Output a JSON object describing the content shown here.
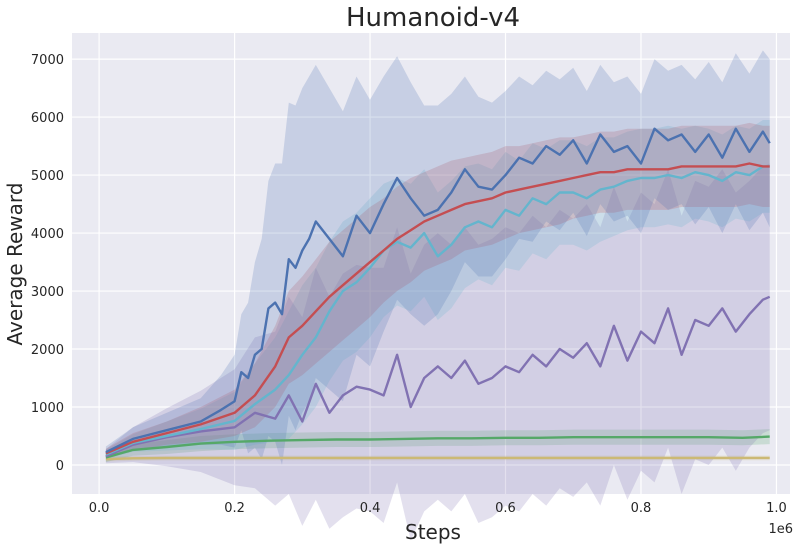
{
  "chart_data": {
    "type": "line",
    "title": "Humanoid-v4",
    "xlabel": "Steps",
    "ylabel": "Average Reward",
    "x_offset_label": "1e6",
    "xlim": [
      -0.04,
      1.02
    ],
    "ylim": [
      -500,
      7450
    ],
    "x_ticks": [
      0.0,
      0.2,
      0.4,
      0.6,
      0.8,
      1.0
    ],
    "x_tick_labels": [
      "0.0",
      "0.2",
      "0.4",
      "0.6",
      "0.8",
      "1.0"
    ],
    "y_ticks": [
      0,
      1000,
      2000,
      3000,
      4000,
      5000,
      6000,
      7000
    ],
    "y_tick_labels": [
      "0",
      "1000",
      "2000",
      "3000",
      "4000",
      "5000",
      "6000",
      "7000"
    ],
    "grid": true,
    "background": "#eaeaf2",
    "legend": "none",
    "series": [
      {
        "color": "#ccb974",
        "x": [
          0.01,
          0.05,
          0.1,
          0.2,
          0.3,
          0.4,
          0.5,
          0.6,
          0.7,
          0.8,
          0.9,
          0.99
        ],
        "y": [
          100,
          115,
          120,
          120,
          122,
          120,
          122,
          123,
          122,
          123,
          122,
          123
        ],
        "band": [
          40,
          40,
          40,
          40,
          40,
          40,
          40,
          40,
          40,
          40,
          40,
          40
        ]
      },
      {
        "color": "#55a868",
        "x": [
          0.01,
          0.05,
          0.1,
          0.15,
          0.2,
          0.25,
          0.3,
          0.35,
          0.4,
          0.45,
          0.5,
          0.55,
          0.6,
          0.65,
          0.7,
          0.75,
          0.8,
          0.85,
          0.9,
          0.95,
          0.99
        ],
        "y": [
          130,
          260,
          310,
          370,
          400,
          420,
          430,
          440,
          440,
          450,
          460,
          460,
          470,
          470,
          480,
          480,
          480,
          480,
          480,
          470,
          490
        ],
        "band": [
          80,
          100,
          120,
          130,
          130,
          130,
          130,
          130,
          130,
          130,
          130,
          130,
          130,
          130,
          130,
          130,
          130,
          130,
          130,
          130,
          130
        ]
      },
      {
        "color": "#8172b2",
        "x": [
          0.01,
          0.05,
          0.1,
          0.15,
          0.2,
          0.23,
          0.26,
          0.28,
          0.3,
          0.32,
          0.34,
          0.36,
          0.38,
          0.4,
          0.42,
          0.44,
          0.46,
          0.48,
          0.5,
          0.52,
          0.54,
          0.56,
          0.58,
          0.6,
          0.62,
          0.64,
          0.66,
          0.68,
          0.7,
          0.72,
          0.74,
          0.76,
          0.78,
          0.8,
          0.82,
          0.84,
          0.86,
          0.88,
          0.9,
          0.92,
          0.94,
          0.96,
          0.98,
          0.99
        ],
        "y": [
          150,
          350,
          480,
          580,
          650,
          900,
          800,
          1200,
          750,
          1400,
          900,
          1200,
          1350,
          1300,
          1200,
          1900,
          1000,
          1500,
          1700,
          1500,
          1800,
          1400,
          1500,
          1700,
          1600,
          1900,
          1700,
          2000,
          1850,
          2100,
          1700,
          2400,
          1800,
          2300,
          2100,
          2700,
          1900,
          2500,
          2400,
          2700,
          2300,
          2600,
          2850,
          2900
        ],
        "band": [
          120,
          300,
          500,
          700,
          1000,
          1300,
          1500,
          1700,
          1800,
          2000,
          2000,
          2100,
          2100,
          2100,
          2200,
          2200,
          2300,
          2300,
          2300,
          2300,
          2300,
          2400,
          2400,
          2400,
          2400,
          2400,
          2400,
          2400,
          2400,
          2400,
          2400,
          2400,
          2400,
          2400,
          2400,
          2400,
          2400,
          2400,
          2400,
          2400,
          2400,
          2300,
          2300,
          2300
        ]
      },
      {
        "color": "#64b5cd",
        "x": [
          0.01,
          0.05,
          0.1,
          0.15,
          0.2,
          0.23,
          0.26,
          0.28,
          0.3,
          0.32,
          0.34,
          0.36,
          0.38,
          0.4,
          0.42,
          0.44,
          0.46,
          0.48,
          0.5,
          0.52,
          0.54,
          0.56,
          0.58,
          0.6,
          0.62,
          0.64,
          0.66,
          0.68,
          0.7,
          0.72,
          0.74,
          0.76,
          0.78,
          0.8,
          0.82,
          0.84,
          0.86,
          0.88,
          0.9,
          0.92,
          0.94,
          0.96,
          0.98,
          0.99
        ],
        "y": [
          180,
          380,
          500,
          620,
          760,
          1050,
          1300,
          1550,
          1900,
          2200,
          2650,
          3000,
          3150,
          3400,
          3700,
          3850,
          3750,
          4000,
          3600,
          3800,
          4100,
          4200,
          4100,
          4400,
          4300,
          4600,
          4500,
          4700,
          4700,
          4600,
          4750,
          4800,
          4900,
          4950,
          4950,
          5000,
          4950,
          5050,
          5000,
          4900,
          5050,
          5000,
          5150,
          5150
        ],
        "band": [
          80,
          150,
          250,
          350,
          500,
          700,
          900,
          1100,
          1200,
          1200,
          1200,
          1200,
          1200,
          1200,
          1150,
          1100,
          1100,
          1100,
          1100,
          1100,
          1050,
          1000,
          1000,
          1000,
          950,
          950,
          950,
          900,
          900,
          900,
          900,
          850,
          850,
          850,
          850,
          850,
          850,
          800,
          800,
          800,
          800,
          800,
          800,
          800
        ]
      },
      {
        "color": "#c44e52",
        "x": [
          0.01,
          0.05,
          0.1,
          0.15,
          0.2,
          0.23,
          0.26,
          0.28,
          0.3,
          0.32,
          0.34,
          0.36,
          0.38,
          0.4,
          0.42,
          0.44,
          0.46,
          0.48,
          0.5,
          0.52,
          0.54,
          0.56,
          0.58,
          0.6,
          0.62,
          0.64,
          0.66,
          0.68,
          0.7,
          0.72,
          0.74,
          0.76,
          0.78,
          0.8,
          0.82,
          0.84,
          0.86,
          0.88,
          0.9,
          0.92,
          0.94,
          0.96,
          0.98,
          0.99
        ],
        "y": [
          200,
          400,
          550,
          700,
          900,
          1200,
          1700,
          2200,
          2400,
          2650,
          2900,
          3100,
          3300,
          3500,
          3700,
          3900,
          4050,
          4200,
          4300,
          4400,
          4500,
          4550,
          4600,
          4700,
          4750,
          4800,
          4850,
          4900,
          4950,
          5000,
          5050,
          5050,
          5100,
          5100,
          5100,
          5100,
          5150,
          5150,
          5150,
          5150,
          5150,
          5200,
          5150,
          5150
        ],
        "band": [
          80,
          150,
          200,
          300,
          400,
          550,
          700,
          800,
          850,
          900,
          950,
          950,
          950,
          950,
          900,
          900,
          900,
          850,
          850,
          850,
          800,
          800,
          800,
          800,
          750,
          750,
          750,
          750,
          700,
          700,
          700,
          700,
          700,
          700,
          700,
          700,
          700,
          700,
          700,
          700,
          700,
          700,
          700,
          700
        ]
      },
      {
        "color": "#4c72b0",
        "x": [
          0.01,
          0.05,
          0.1,
          0.15,
          0.18,
          0.2,
          0.21,
          0.22,
          0.23,
          0.24,
          0.25,
          0.26,
          0.27,
          0.28,
          0.29,
          0.3,
          0.31,
          0.32,
          0.34,
          0.36,
          0.38,
          0.4,
          0.42,
          0.44,
          0.46,
          0.48,
          0.5,
          0.52,
          0.54,
          0.56,
          0.58,
          0.6,
          0.62,
          0.64,
          0.66,
          0.68,
          0.7,
          0.72,
          0.74,
          0.76,
          0.78,
          0.8,
          0.82,
          0.84,
          0.86,
          0.88,
          0.9,
          0.92,
          0.94,
          0.96,
          0.98,
          0.99
        ],
        "y": [
          220,
          450,
          600,
          750,
          950,
          1100,
          1600,
          1500,
          1900,
          2000,
          2700,
          2800,
          2600,
          3550,
          3400,
          3700,
          3900,
          4200,
          3900,
          3600,
          4300,
          4000,
          4500,
          4950,
          4600,
          4300,
          4400,
          4700,
          5100,
          4800,
          4750,
          5000,
          5300,
          5200,
          5500,
          5350,
          5600,
          5200,
          5700,
          5400,
          5500,
          5200,
          5800,
          5600,
          5700,
          5400,
          5700,
          5300,
          5800,
          5400,
          5750,
          5550
        ],
        "band": [
          100,
          200,
          300,
          400,
          600,
          800,
          1000,
          1300,
          1600,
          1900,
          2200,
          2400,
          2600,
          2700,
          2800,
          2800,
          2800,
          2700,
          2600,
          2500,
          2400,
          2300,
          2200,
          2100,
          2000,
          1900,
          1800,
          1700,
          1600,
          1550,
          1500,
          1450,
          1400,
          1350,
          1300,
          1300,
          1250,
          1250,
          1200,
          1200,
          1200,
          1200,
          1200,
          1200,
          1200,
          1250,
          1250,
          1300,
          1300,
          1350,
          1400,
          1450
        ]
      }
    ]
  }
}
